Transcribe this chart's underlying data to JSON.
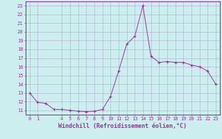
{
  "x": [
    0,
    1,
    2,
    3,
    4,
    5,
    6,
    7,
    8,
    9,
    10,
    11,
    12,
    13,
    14,
    15,
    16,
    17,
    18,
    19,
    20,
    21,
    22,
    23
  ],
  "y": [
    13.0,
    11.9,
    11.8,
    11.1,
    11.1,
    11.0,
    10.9,
    10.85,
    10.9,
    11.1,
    12.6,
    15.5,
    18.6,
    19.5,
    23.0,
    17.2,
    16.5,
    16.6,
    16.5,
    16.5,
    16.2,
    16.0,
    15.5,
    14.0
  ],
  "line_color": "#993399",
  "marker": "+",
  "bg_color": "#cceeee",
  "grid_color": "#aaaacc",
  "xlabel": "Windchill (Refroidissement éolien,°C)",
  "xlabel_color": "#993399",
  "xlim": [
    -0.5,
    23.5
  ],
  "ylim": [
    10.5,
    23.5
  ],
  "yticks": [
    11,
    12,
    13,
    14,
    15,
    16,
    17,
    18,
    19,
    20,
    21,
    22,
    23
  ],
  "xticks": [
    0,
    1,
    4,
    5,
    6,
    7,
    8,
    9,
    10,
    11,
    12,
    13,
    14,
    15,
    16,
    17,
    18,
    19,
    20,
    21,
    22,
    23
  ],
  "tick_color": "#993399",
  "tick_fontsize": 5.0,
  "xlabel_fontsize": 6.0,
  "spine_color": "#993399"
}
